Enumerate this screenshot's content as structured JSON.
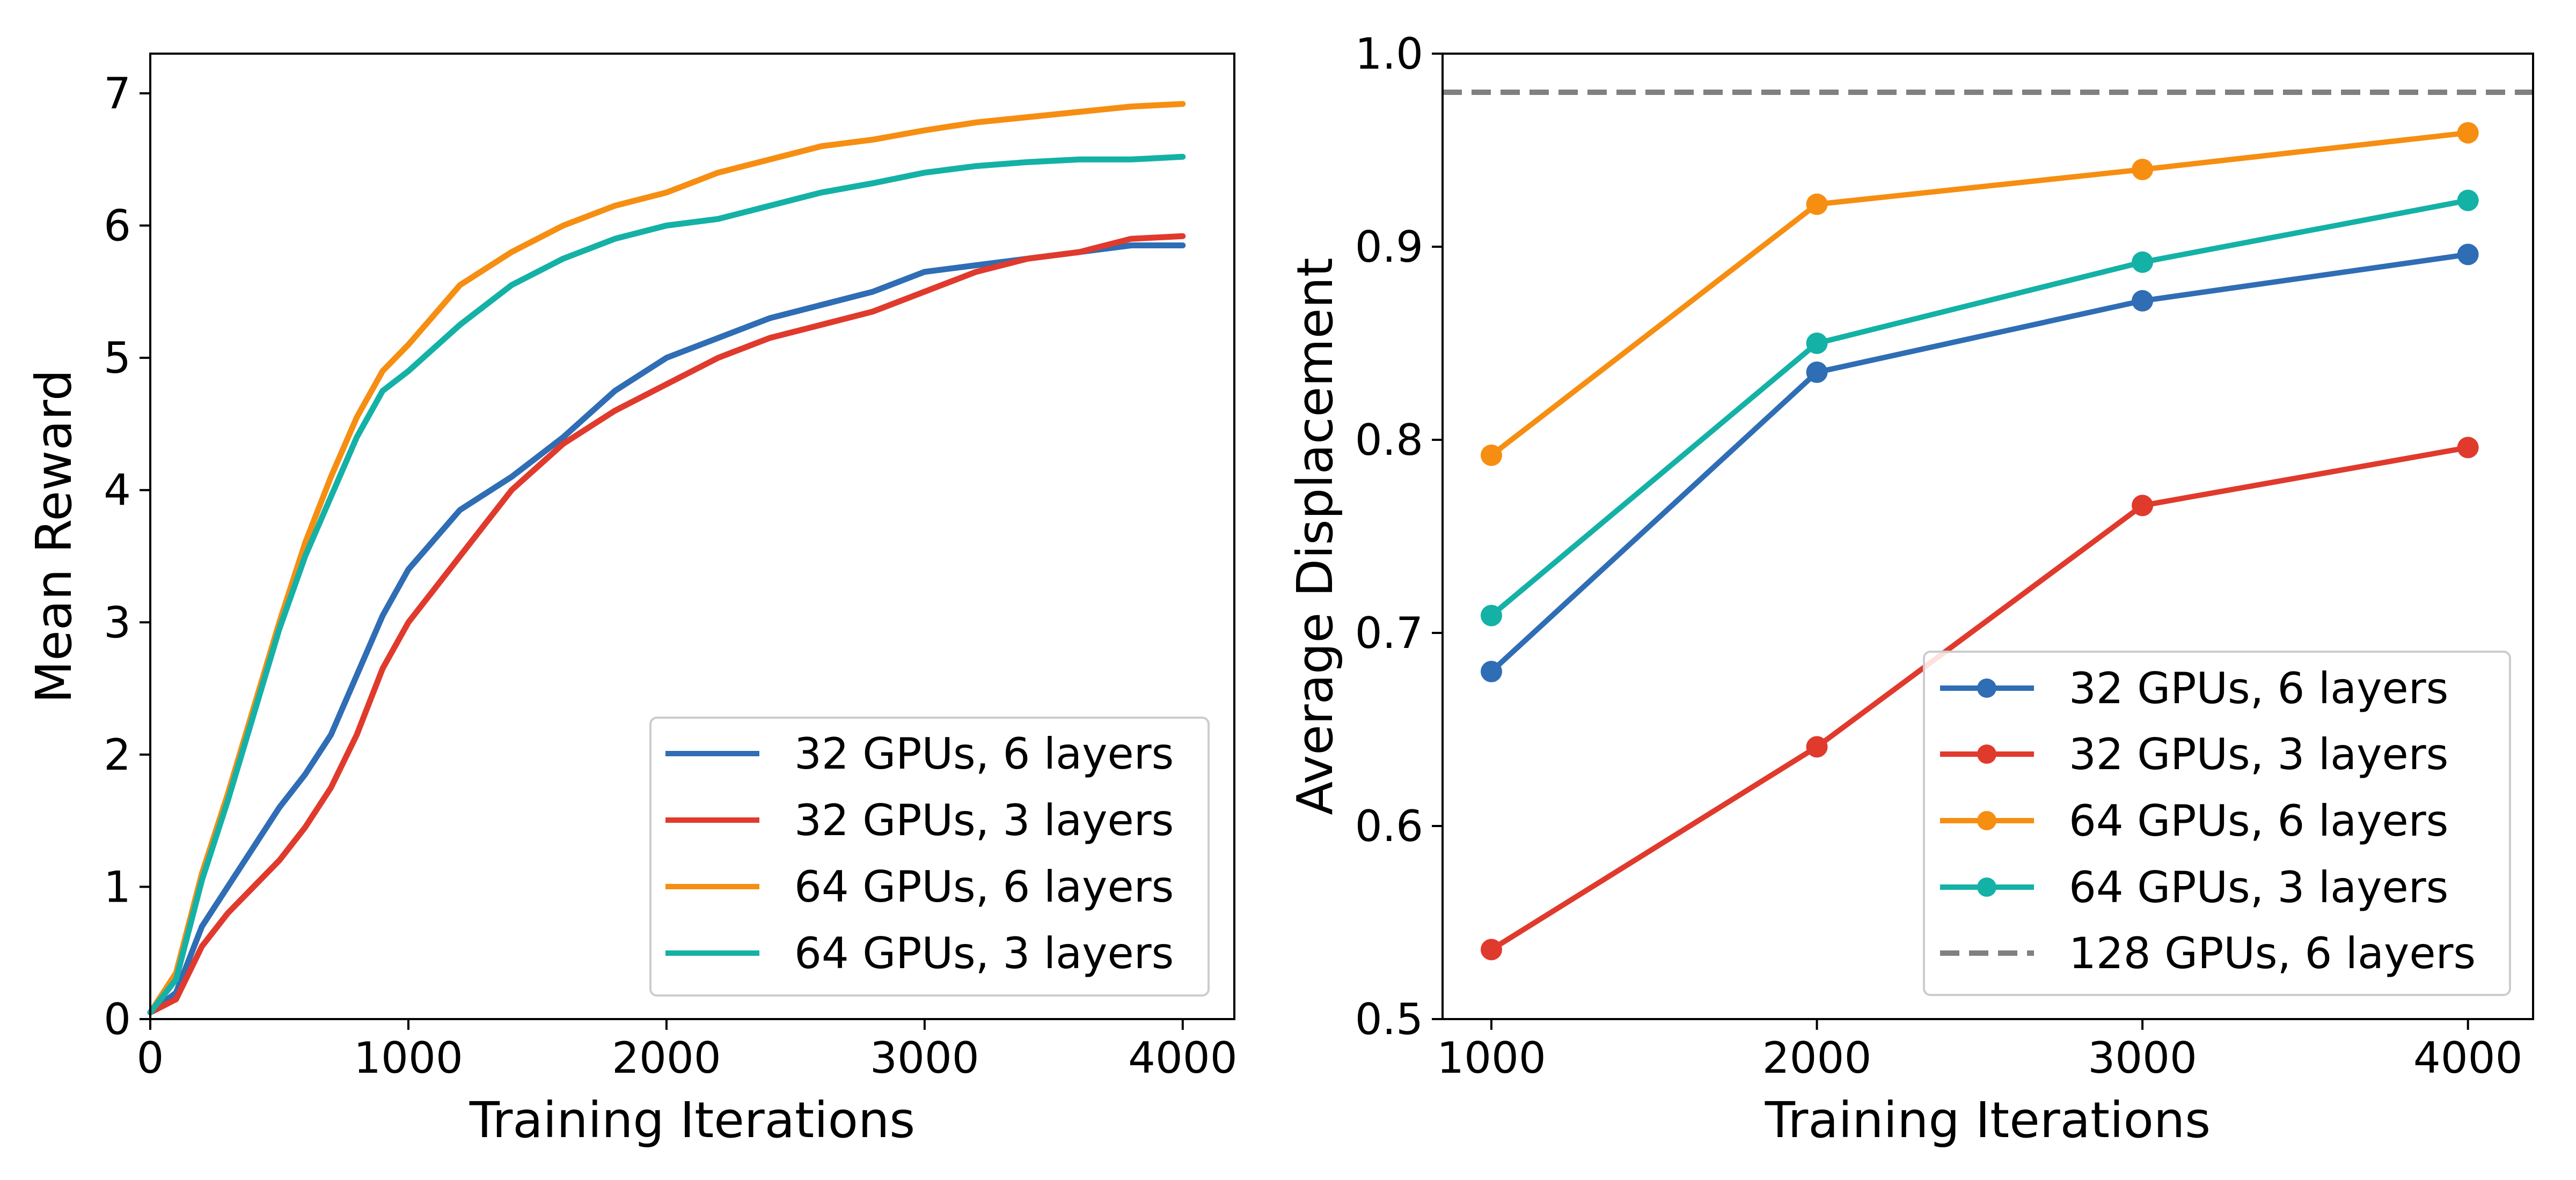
{
  "chart_data": [
    {
      "type": "line",
      "title": "",
      "xlabel": "Training Iterations",
      "ylabel": "Mean Reward",
      "xlim": [
        0,
        4200
      ],
      "ylim": [
        0,
        7.3
      ],
      "xticks": [
        {
          "value": 0,
          "label": "0"
        },
        {
          "value": 1000,
          "label": "1000"
        },
        {
          "value": 2000,
          "label": "2000"
        },
        {
          "value": 3000,
          "label": "3000"
        },
        {
          "value": 4000,
          "label": "4000"
        }
      ],
      "yticks": [
        {
          "value": 0,
          "label": "0"
        },
        {
          "value": 1,
          "label": "1"
        },
        {
          "value": 2,
          "label": "2"
        },
        {
          "value": 3,
          "label": "3"
        },
        {
          "value": 4,
          "label": "4"
        },
        {
          "value": 5,
          "label": "5"
        },
        {
          "value": 6,
          "label": "6"
        },
        {
          "value": 7,
          "label": "7"
        }
      ],
      "legend_position": "lower-right",
      "x": [
        0,
        100,
        200,
        300,
        400,
        500,
        600,
        700,
        800,
        900,
        1000,
        1200,
        1400,
        1600,
        1800,
        2000,
        2200,
        2400,
        2600,
        2800,
        3000,
        3200,
        3400,
        3600,
        3800,
        4000
      ],
      "series": [
        {
          "name": "32 GPUs, 6 layers",
          "color": "#2f6db5",
          "values": [
            0.05,
            0.2,
            0.7,
            1.0,
            1.3,
            1.6,
            1.85,
            2.15,
            2.6,
            3.05,
            3.4,
            3.85,
            4.1,
            4.4,
            4.75,
            5.0,
            5.15,
            5.3,
            5.4,
            5.5,
            5.65,
            5.7,
            5.75,
            5.8,
            5.85,
            5.85
          ]
        },
        {
          "name": "32 GPUs, 3 layers",
          "color": "#e03a2d",
          "values": [
            0.05,
            0.15,
            0.55,
            0.8,
            1.0,
            1.2,
            1.45,
            1.75,
            2.15,
            2.65,
            3.0,
            3.5,
            4.0,
            4.35,
            4.6,
            4.8,
            5.0,
            5.15,
            5.25,
            5.35,
            5.5,
            5.65,
            5.75,
            5.8,
            5.9,
            5.92
          ]
        },
        {
          "name": "64 GPUs, 6 layers",
          "color": "#f68e12",
          "values": [
            0.05,
            0.35,
            1.1,
            1.7,
            2.35,
            3.0,
            3.6,
            4.1,
            4.55,
            4.9,
            5.1,
            5.55,
            5.8,
            6.0,
            6.15,
            6.25,
            6.4,
            6.5,
            6.6,
            6.65,
            6.72,
            6.78,
            6.82,
            6.86,
            6.9,
            6.92
          ]
        },
        {
          "name": "64 GPUs, 3 layers",
          "color": "#14b1a6",
          "values": [
            0.05,
            0.3,
            1.05,
            1.65,
            2.3,
            2.95,
            3.5,
            3.95,
            4.4,
            4.75,
            4.9,
            5.25,
            5.55,
            5.75,
            5.9,
            6.0,
            6.05,
            6.15,
            6.25,
            6.32,
            6.4,
            6.45,
            6.48,
            6.5,
            6.5,
            6.52
          ]
        }
      ]
    },
    {
      "type": "line",
      "title": "",
      "xlabel": "Training Iterations",
      "ylabel": "Average Displacement",
      "xlim": [
        850,
        4200
      ],
      "ylim": [
        0.5,
        1.0
      ],
      "xticks": [
        {
          "value": 1000,
          "label": "1000"
        },
        {
          "value": 2000,
          "label": "2000"
        },
        {
          "value": 3000,
          "label": "3000"
        },
        {
          "value": 4000,
          "label": "4000"
        }
      ],
      "yticks": [
        {
          "value": 0.5,
          "label": "0.5"
        },
        {
          "value": 0.6,
          "label": "0.6"
        },
        {
          "value": 0.7,
          "label": "0.7"
        },
        {
          "value": 0.8,
          "label": "0.8"
        },
        {
          "value": 0.9,
          "label": "0.9"
        },
        {
          "value": 1.0,
          "label": "1.0"
        }
      ],
      "legend_position": "lower-right",
      "x": [
        1000,
        2000,
        3000,
        4000
      ],
      "series": [
        {
          "name": "32 GPUs, 6 layers",
          "color": "#2f6db5",
          "markers": true,
          "values": [
            0.68,
            0.835,
            0.872,
            0.896
          ]
        },
        {
          "name": "32 GPUs, 3 layers",
          "color": "#e03a2d",
          "markers": true,
          "values": [
            0.536,
            0.641,
            0.766,
            0.796
          ]
        },
        {
          "name": "64 GPUs, 6 layers",
          "color": "#f68e12",
          "markers": true,
          "values": [
            0.792,
            0.922,
            0.94,
            0.959
          ]
        },
        {
          "name": "64 GPUs, 3 layers",
          "color": "#14b1a6",
          "markers": true,
          "values": [
            0.709,
            0.85,
            0.892,
            0.924
          ]
        }
      ],
      "reference_lines": [
        {
          "name": "128 GPUs, 6 layers",
          "color": "#808080",
          "dashed": true,
          "y": 0.98
        }
      ]
    }
  ]
}
